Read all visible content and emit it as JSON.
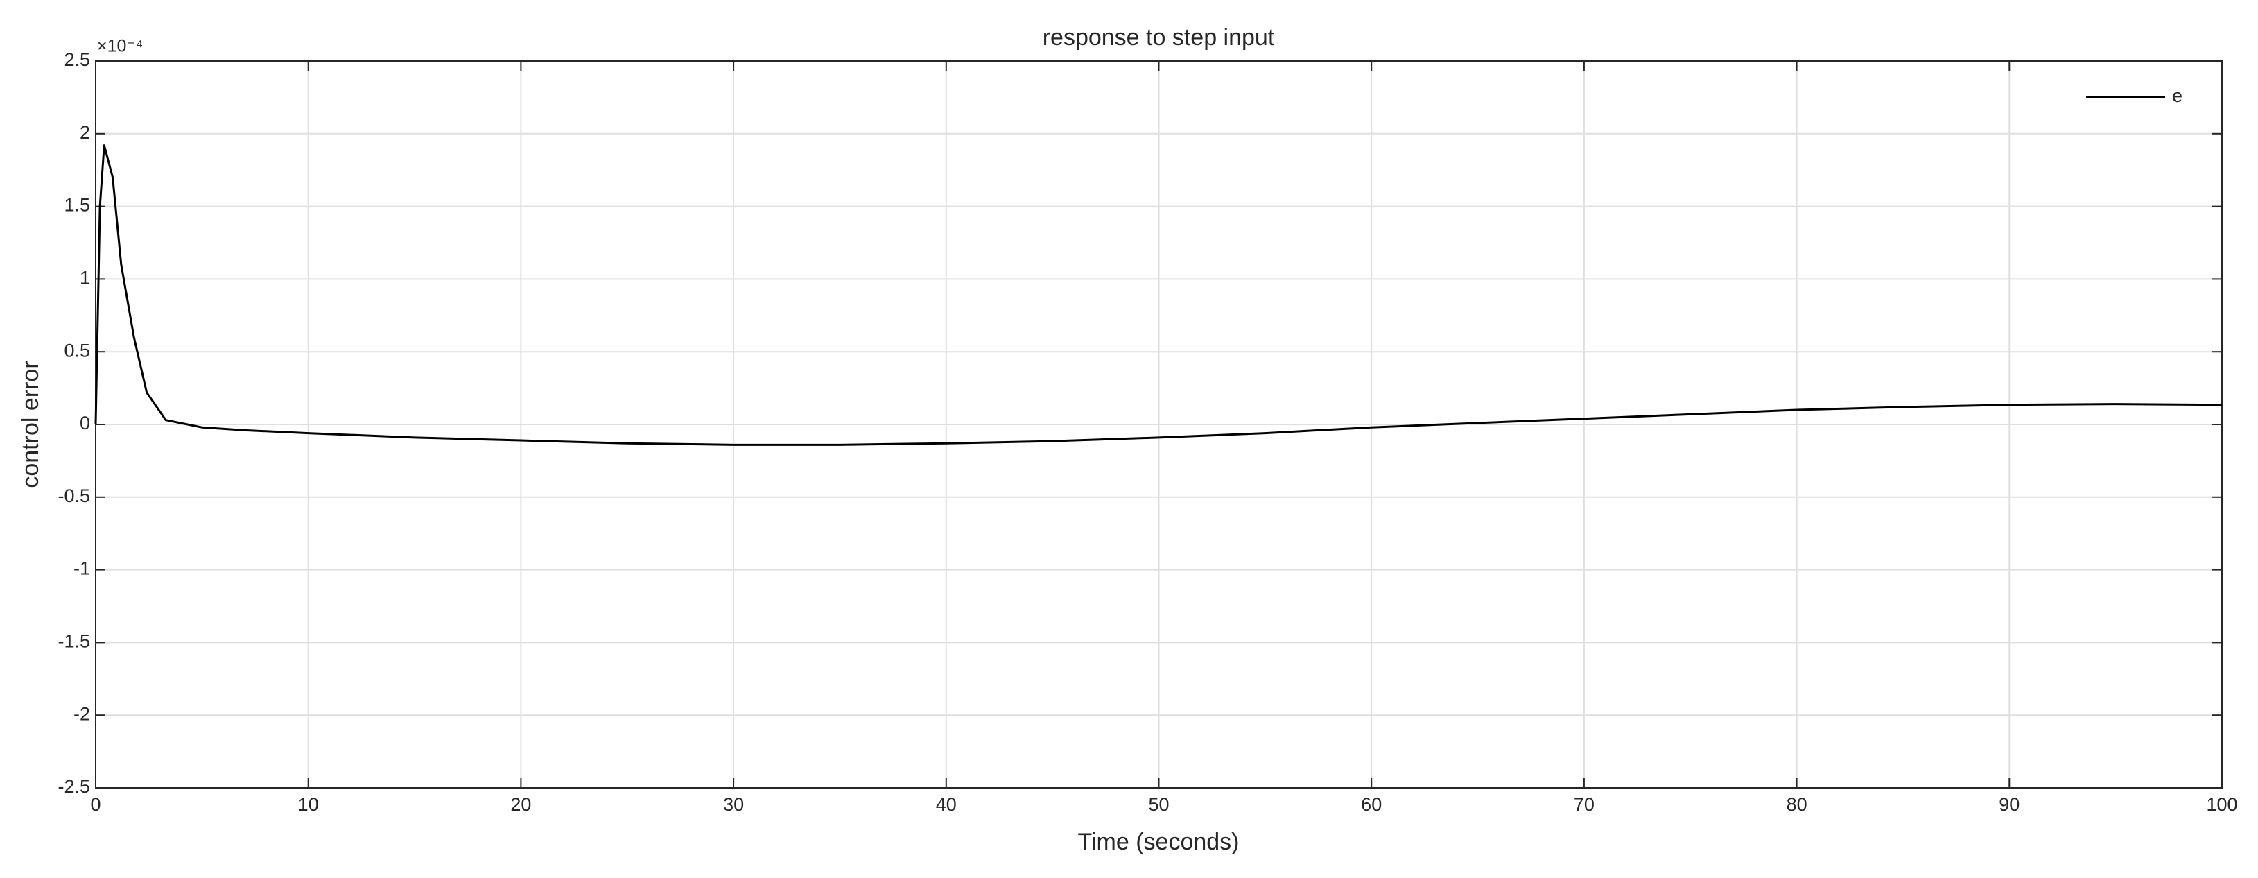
{
  "chart_data": {
    "type": "line",
    "title": "response to step input",
    "x_label": "Time (seconds)",
    "y_label": "control error",
    "y_multiplier": "×10⁻⁴",
    "x": [
      0,
      0.2,
      0.4,
      0.8,
      1.2,
      1.8,
      2.4,
      3.3,
      5,
      7,
      10,
      15,
      20,
      25,
      30,
      35,
      40,
      45,
      50,
      55,
      60,
      65,
      70,
      75,
      80,
      85,
      90,
      95,
      100
    ],
    "series": [
      {
        "name": "e",
        "color": "#000000",
        "values": [
          0,
          1.5,
          1.92,
          1.7,
          1.1,
          0.6,
          0.22,
          0.03,
          -0.02,
          -0.04,
          -0.06,
          -0.09,
          -0.11,
          -0.13,
          -0.14,
          -0.14,
          -0.13,
          -0.115,
          -0.09,
          -0.06,
          -0.02,
          0.01,
          0.04,
          0.07,
          0.1,
          0.12,
          0.135,
          0.14,
          0.135
        ]
      }
    ],
    "xlim": [
      0,
      100
    ],
    "xticks": [
      0,
      10,
      20,
      30,
      40,
      50,
      60,
      70,
      80,
      90,
      100
    ],
    "ylim": [
      -2.5,
      2.5
    ],
    "yticks": [
      -2.5,
      -2,
      -1.5,
      -1,
      -0.5,
      0,
      0.5,
      1,
      1.5,
      2,
      2.5
    ],
    "grid": true,
    "legend": "upper right"
  }
}
